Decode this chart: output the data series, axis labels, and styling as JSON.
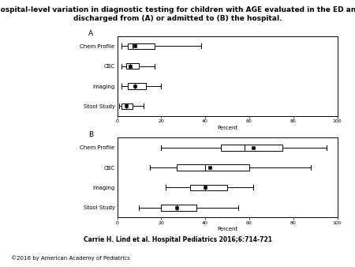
{
  "title_line1": "Hospital-level variation in diagnostic testing for children with AGE evaluated in the ED and",
  "title_line2": "discharged from (A) or admitted to (B) the hospital.",
  "citation": "Carrie H. Lind et al. Hospital Pediatrics 2016;6:714-721",
  "copyright": "©2016 by American Academy of Pediatrics",
  "panel_A_label": "A",
  "panel_B_label": "B",
  "categories": [
    "Chem Profile",
    "CBC",
    "Imaging",
    "Stool Study"
  ],
  "xlabel": "Percent",
  "xlim": [
    0,
    100
  ],
  "xticks": [
    0,
    20,
    40,
    60,
    80,
    100
  ],
  "panel_A": {
    "Chem Profile": {
      "min": 2,
      "q1": 5,
      "median": 7,
      "mean": 8,
      "q3": 17,
      "max": 38
    },
    "CBC": {
      "min": 2,
      "q1": 4,
      "median": 6,
      "mean": 6,
      "q3": 10,
      "max": 17
    },
    "Imaging": {
      "min": 2,
      "q1": 5,
      "median": 8,
      "mean": 8,
      "q3": 13,
      "max": 20
    },
    "Stool Study": {
      "min": 1,
      "q1": 2,
      "median": 4,
      "mean": 4,
      "q3": 7,
      "max": 12
    }
  },
  "panel_B": {
    "Chem Profile": {
      "min": 20,
      "q1": 47,
      "median": 58,
      "mean": 62,
      "q3": 75,
      "max": 95
    },
    "CBC": {
      "min": 15,
      "q1": 27,
      "median": 40,
      "mean": 42,
      "q3": 60,
      "max": 88
    },
    "Imaging": {
      "min": 22,
      "q1": 33,
      "median": 40,
      "mean": 40,
      "q3": 50,
      "max": 62
    },
    "Stool Study": {
      "min": 10,
      "q1": 20,
      "median": 27,
      "mean": 27,
      "q3": 36,
      "max": 55
    }
  },
  "box_color": "white",
  "box_edgecolor": "black",
  "whisker_color": "black",
  "mean_marker": "s",
  "mean_markersize": 3.5,
  "mean_markercolor": "black",
  "linewidth": 0.7,
  "label_fontsize": 5.0,
  "tick_fontsize": 4.5,
  "xlabel_fontsize": 5.0,
  "panel_label_fontsize": 6.5,
  "title_fontsize": 6.5,
  "citation_fontsize": 5.5,
  "copyright_fontsize": 5.0
}
